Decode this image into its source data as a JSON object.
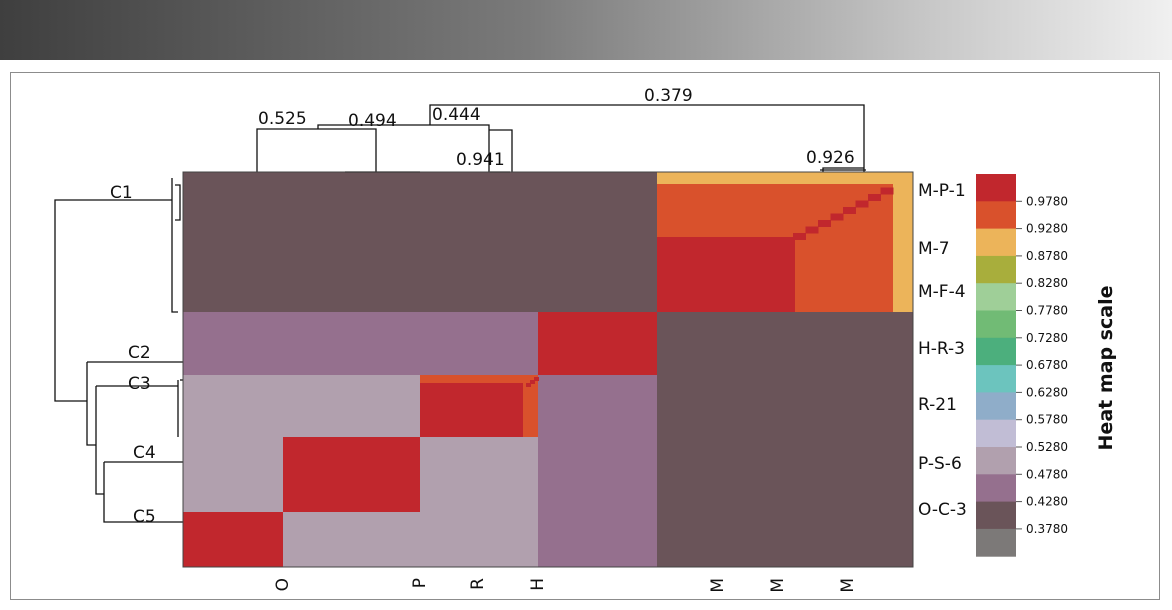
{
  "chart_data": {
    "type": "heatmap",
    "title": "",
    "row_labels": [
      "M-P-1",
      "M-7",
      "M-F-4",
      "H-R-3",
      "R-21",
      "P-S-6",
      "O-C-3"
    ],
    "column_tick_labels": [
      "O",
      "P",
      "R",
      "H",
      "M",
      "M",
      "M"
    ],
    "sample_cluster_labels": [
      "C1",
      "C2",
      "C3",
      "C4",
      "C5"
    ],
    "column_dendrogram_heights": [
      "0.525",
      "0.494",
      "0.444",
      "0.941",
      "0.379",
      "0.926"
    ],
    "colorbar": {
      "label": "Heat map scale",
      "ticks": [
        "0.9780",
        "0.9280",
        "0.8780",
        "0.8280",
        "0.7780",
        "0.7280",
        "0.6780",
        "0.6280",
        "0.5780",
        "0.5280",
        "0.4780",
        "0.4280",
        "0.3780"
      ],
      "colors": [
        "#c1272d",
        "#d9512c",
        "#ecb45a",
        "#a8ae3c",
        "#9fcf98",
        "#71bb75",
        "#4caf7d",
        "#6cc4be",
        "#8fadc9",
        "#c1bdd5",
        "#b1a0ae",
        "#95708e",
        "#6a5459",
        "#7c7978"
      ]
    },
    "block_structure": {
      "groups": [
        "M",
        "H",
        "R",
        "P",
        "O"
      ],
      "within_group_similarity": {
        "M": 0.926,
        "H": 1.0,
        "R": 0.941,
        "P": 1.0,
        "O": 1.0
      },
      "between_group_similarity": [
        {
          "pair": [
            "M",
            "H"
          ],
          "value": 0.379
        },
        {
          "pair": [
            "M",
            "R"
          ],
          "value": 0.379
        },
        {
          "pair": [
            "M",
            "P"
          ],
          "value": 0.379
        },
        {
          "pair": [
            "M",
            "O"
          ],
          "value": 0.379
        },
        {
          "pair": [
            "H",
            "R"
          ],
          "value": 0.444
        },
        {
          "pair": [
            "H",
            "P"
          ],
          "value": 0.444
        },
        {
          "pair": [
            "H",
            "O"
          ],
          "value": 0.444
        },
        {
          "pair": [
            "R",
            "P"
          ],
          "value": 0.525
        },
        {
          "pair": [
            "R",
            "O"
          ],
          "value": 0.525
        },
        {
          "pair": [
            "P",
            "O"
          ],
          "value": 0.525
        }
      ]
    }
  }
}
